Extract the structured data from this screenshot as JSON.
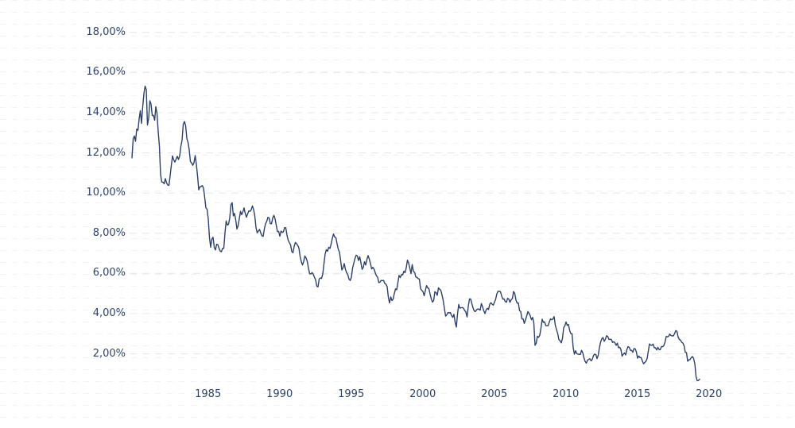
{
  "chart_data": {
    "type": "line",
    "title": "",
    "legend": "none",
    "y_axis": {
      "tick_labels": [
        "18,00%",
        "16,00%",
        "14,00%",
        "12,00%",
        "10,00%",
        "8,00%",
        "6,00%",
        "4,00%",
        "2,00%"
      ],
      "tick_values": [
        18,
        16,
        14,
        12,
        10,
        8,
        6,
        4,
        2
      ],
      "unit": "percent",
      "grid": "dashed-horizontal-major, faint dotted minor texture"
    },
    "x_axis": {
      "tick_labels": [
        "1985",
        "1990",
        "1995",
        "2000",
        "2005",
        "2010",
        "2015",
        "2020"
      ],
      "interval_years": 5
    },
    "series": {
      "interval": "monthly",
      "unit": "percent",
      "first_point": "1980-10",
      "last_point": "2020-06",
      "values_by_year": {
        "1980": [
          11.75,
          12.68,
          12.84
        ],
        "1981": [
          12.57,
          13.19,
          13.12,
          13.68,
          14.1,
          13.47,
          14.28,
          14.94,
          15.32,
          15.15,
          13.39,
          13.72
        ],
        "1982": [
          14.59,
          14.43,
          13.86,
          13.87,
          13.62,
          14.3,
          13.95,
          13.06,
          12.34,
          10.91,
          10.55,
          10.54
        ],
        "1983": [
          10.46,
          10.72,
          10.51,
          10.4,
          10.38,
          10.85,
          11.38,
          11.85,
          11.65,
          11.54,
          11.69,
          11.83
        ],
        "1984": [
          11.67,
          11.84,
          12.32,
          12.63,
          13.41,
          13.56,
          13.36,
          12.72,
          12.52,
          12.16,
          11.57,
          11.5
        ],
        "1985": [
          11.38,
          11.51,
          11.86,
          11.43,
          10.85,
          10.16,
          10.31,
          10.33,
          10.37,
          10.24,
          9.78,
          9.26
        ],
        "1986": [
          9.19,
          8.7,
          7.78,
          7.3,
          7.71,
          7.8,
          7.3,
          7.17,
          7.45,
          7.43,
          7.25,
          7.11
        ],
        "1987": [
          7.08,
          7.25,
          7.25,
          8.02,
          8.61,
          8.4,
          8.45,
          8.76,
          9.42,
          9.52,
          8.86,
          8.99
        ],
        "1988": [
          8.67,
          8.21,
          8.37,
          8.72,
          9.09,
          8.92,
          9.06,
          9.26,
          8.98,
          8.8,
          8.96,
          9.11
        ],
        "1989": [
          9.09,
          9.17,
          9.36,
          9.18,
          8.86,
          8.28,
          8.02,
          8.11,
          8.19,
          8.01,
          7.87,
          7.84
        ],
        "1990": [
          8.21,
          8.47,
          8.59,
          8.79,
          8.76,
          8.48,
          8.47,
          8.75,
          8.89,
          8.72,
          8.39,
          8.08
        ],
        "1991": [
          8.09,
          7.85,
          8.11,
          8.04,
          8.07,
          8.28,
          8.27,
          7.9,
          7.65,
          7.53,
          7.42,
          7.09
        ],
        "1992": [
          7.03,
          7.34,
          7.54,
          7.48,
          7.39,
          7.26,
          6.84,
          6.59,
          6.42,
          6.59,
          6.87,
          6.77
        ],
        "1993": [
          6.6,
          6.26,
          5.98,
          5.97,
          6.04,
          5.96,
          5.81,
          5.68,
          5.36,
          5.33,
          5.72,
          5.77
        ],
        "1994": [
          5.75,
          5.97,
          6.48,
          6.97,
          7.18,
          7.1,
          7.3,
          7.24,
          7.46,
          7.74,
          7.96,
          7.81
        ],
        "1995": [
          7.78,
          7.47,
          7.2,
          7.06,
          6.63,
          6.17,
          6.28,
          6.49,
          6.2,
          6.04,
          5.93,
          5.71
        ],
        "1996": [
          5.65,
          5.81,
          6.27,
          6.51,
          6.74,
          6.91,
          6.87,
          6.64,
          6.83,
          6.53,
          6.2,
          6.3
        ],
        "1997": [
          6.58,
          6.42,
          6.69,
          6.89,
          6.71,
          6.49,
          6.22,
          6.3,
          6.21,
          6.03,
          5.88,
          5.81
        ],
        "1998": [
          5.54,
          5.57,
          5.65,
          5.64,
          5.65,
          5.5,
          5.46,
          5.34,
          4.81,
          4.53,
          4.83,
          4.65
        ],
        "1999": [
          4.72,
          5.0,
          5.23,
          5.18,
          5.54,
          5.9,
          5.79,
          5.94,
          5.92,
          6.11,
          6.03,
          6.28
        ],
        "2000": [
          6.66,
          6.52,
          6.26,
          5.99,
          6.44,
          6.1,
          6.05,
          5.83,
          5.8,
          5.74,
          5.72,
          5.24
        ],
        "2001": [
          5.16,
          5.1,
          4.89,
          5.14,
          5.39,
          5.28,
          5.24,
          4.97,
          4.73,
          4.57,
          4.65,
          5.09
        ],
        "2002": [
          5.04,
          4.91,
          5.28,
          5.21,
          5.16,
          4.93,
          4.65,
          4.26,
          3.87,
          3.94,
          4.05,
          4.03
        ],
        "2003": [
          4.05,
          3.9,
          3.81,
          3.96,
          3.57,
          3.33,
          3.98,
          4.45,
          4.27,
          4.29,
          4.3,
          4.27
        ],
        "2004": [
          4.15,
          4.08,
          3.83,
          4.35,
          4.72,
          4.73,
          4.5,
          4.28,
          4.13,
          4.1,
          4.19,
          4.23
        ],
        "2005": [
          4.22,
          4.17,
          4.5,
          4.34,
          4.14,
          4.0,
          4.18,
          4.26,
          4.2,
          4.46,
          4.54,
          4.47
        ],
        "2006": [
          4.42,
          4.57,
          4.72,
          4.99,
          5.11,
          5.11,
          5.09,
          4.88,
          4.72,
          4.73,
          4.6,
          4.56
        ],
        "2007": [
          4.76,
          4.72,
          4.56,
          4.69,
          4.75,
          5.1,
          5.0,
          4.67,
          4.52,
          4.53,
          4.15,
          4.1
        ],
        "2008": [
          3.74,
          3.74,
          3.51,
          3.68,
          3.88,
          4.1,
          4.01,
          3.89,
          3.69,
          3.81,
          3.53,
          2.42
        ],
        "2009": [
          2.52,
          2.87,
          2.82,
          2.93,
          3.29,
          3.72,
          3.56,
          3.59,
          3.4,
          3.39,
          3.4,
          3.59
        ],
        "2010": [
          3.73,
          3.69,
          3.73,
          3.85,
          3.42,
          3.2,
          3.01,
          2.7,
          2.65,
          2.54,
          2.76,
          3.29
        ],
        "2011": [
          3.39,
          3.58,
          3.41,
          3.46,
          3.17,
          3.0,
          3.0,
          2.3,
          1.98,
          2.15,
          2.01,
          1.98
        ],
        "2012": [
          1.97,
          1.97,
          2.17,
          2.05,
          1.8,
          1.62,
          1.53,
          1.68,
          1.72,
          1.75,
          1.65,
          1.72
        ],
        "2013": [
          1.91,
          1.98,
          1.96,
          1.76,
          1.93,
          2.3,
          2.58,
          2.74,
          2.81,
          2.62,
          2.72,
          2.9
        ],
        "2014": [
          2.86,
          2.71,
          2.72,
          2.71,
          2.56,
          2.6,
          2.54,
          2.42,
          2.53,
          2.3,
          2.33,
          2.21
        ],
        "2015": [
          1.88,
          1.98,
          2.04,
          1.94,
          2.2,
          2.36,
          2.32,
          2.17,
          2.17,
          2.07,
          2.26,
          2.24
        ],
        "2016": [
          2.09,
          1.78,
          1.89,
          1.81,
          1.81,
          1.64,
          1.5,
          1.56,
          1.63,
          1.76,
          2.14,
          2.49
        ],
        "2017": [
          2.43,
          2.42,
          2.48,
          2.3,
          2.3,
          2.19,
          2.32,
          2.21,
          2.2,
          2.36,
          2.35,
          2.4
        ],
        "2018": [
          2.58,
          2.86,
          2.84,
          2.87,
          2.98,
          2.91,
          2.89,
          2.89,
          3.0,
          3.15,
          3.12,
          2.83
        ],
        "2019": [
          2.71,
          2.68,
          2.57,
          2.53,
          2.4,
          2.07,
          2.06,
          1.63,
          1.7,
          1.71,
          1.81,
          1.86
        ],
        "2020": [
          1.76,
          1.5,
          0.87,
          0.66,
          0.67,
          0.73
        ]
      }
    }
  },
  "colors": {
    "background": "#ffffff",
    "line": "#2e4167",
    "axis_label": "#2e4368",
    "grid_major": "#e6e6e6",
    "grid_texture": "#f1f1f1"
  }
}
